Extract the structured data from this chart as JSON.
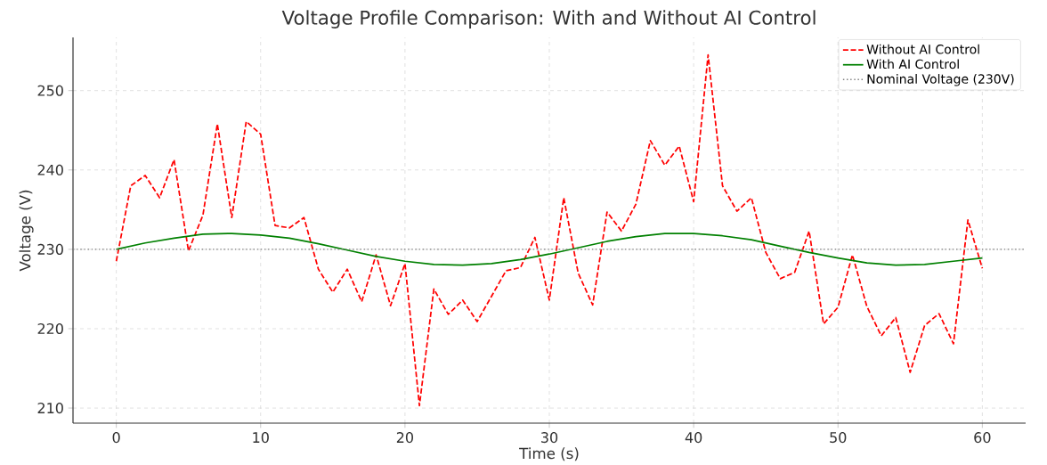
{
  "chart_data": {
    "type": "line",
    "title": "Voltage Profile Comparison: With and Without AI Control",
    "xlabel": "Time (s)",
    "ylabel": "Voltage (V)",
    "x": [
      0,
      1,
      2,
      3,
      4,
      5,
      6,
      7,
      8,
      9,
      10,
      11,
      12,
      13,
      14,
      15,
      16,
      17,
      18,
      19,
      20,
      21,
      22,
      23,
      24,
      25,
      26,
      27,
      28,
      29,
      30,
      31,
      32,
      33,
      34,
      35,
      36,
      37,
      38,
      39,
      40,
      41,
      42,
      43,
      44,
      45,
      46,
      47,
      48,
      49,
      50,
      51,
      52,
      53,
      54,
      55,
      56,
      57,
      58,
      59,
      60
    ],
    "series": [
      {
        "name": "Without AI Control",
        "color": "#ff0000",
        "line_style": "dashed",
        "values": [
          228.5,
          238,
          239.3,
          236.5,
          241.3,
          229.8,
          234.3,
          245.8,
          234,
          246.1,
          244.5,
          233,
          232.7,
          234,
          227.5,
          224.6,
          227.5,
          223.4,
          229.3,
          222.9,
          228.2,
          210.3,
          225,
          221.8,
          223.6,
          220.9,
          224.1,
          227.3,
          227.7,
          231.5,
          223.6,
          236.5,
          227,
          223,
          234.7,
          232.3,
          235.7,
          243.7,
          240.6,
          243,
          236,
          254.5,
          238,
          234.8,
          236.5,
          229.6,
          226.3,
          227.1,
          232.3,
          220.6,
          222.7,
          229.3,
          222.8,
          219.1,
          221.4,
          214.5,
          220.4,
          221.9,
          218.1,
          233.7,
          227.6
        ]
      },
      {
        "name": "With AI Control",
        "color": "#008000",
        "line_style": "solid",
        "x": [
          0,
          2,
          4,
          6,
          8,
          10,
          12,
          14,
          16,
          18,
          20,
          22,
          24,
          26,
          28,
          30,
          32,
          34,
          36,
          38,
          40,
          42,
          44,
          46,
          48,
          50,
          52,
          54,
          56,
          58,
          60
        ],
        "values": [
          230.0,
          230.8,
          231.4,
          231.9,
          232.0,
          231.8,
          231.4,
          230.7,
          229.9,
          229.1,
          228.5,
          228.1,
          228.0,
          228.2,
          228.7,
          229.4,
          230.2,
          231.0,
          231.6,
          232.0,
          232.0,
          231.7,
          231.2,
          230.4,
          229.6,
          228.9,
          228.3,
          228.0,
          228.1,
          228.5,
          228.9
        ]
      }
    ],
    "ref_lines": [
      {
        "axis": "y",
        "value": 230,
        "label": "Nominal Voltage (230V)",
        "color": "#808080",
        "line_style": "dotted"
      }
    ],
    "xlim": [
      -3,
      63
    ],
    "ylim": [
      208.1,
      256.7
    ],
    "xticks": [
      0,
      10,
      20,
      30,
      40,
      50,
      60
    ],
    "yticks": [
      210,
      220,
      230,
      240,
      250
    ],
    "grid": true,
    "legend": "top right",
    "marker": "none"
  }
}
